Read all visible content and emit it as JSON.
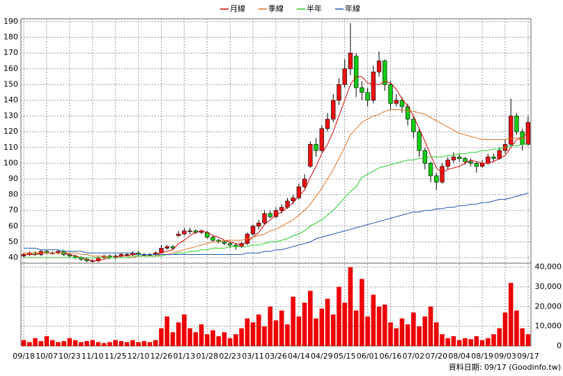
{
  "chart_data": {
    "type": "candlestick",
    "series": [
      {
        "name": "月線",
        "color": "#dd0000",
        "values": [
          42,
          42,
          42,
          43,
          43,
          43,
          43,
          43,
          42,
          41,
          40,
          39,
          38,
          38,
          39,
          40,
          40,
          41,
          41,
          42,
          42,
          42,
          42,
          42,
          43,
          44,
          45,
          49,
          51,
          54,
          56,
          57,
          56,
          54,
          53,
          51,
          50,
          49,
          48,
          50,
          53,
          56,
          61,
          64,
          67,
          69,
          72,
          75,
          79,
          83,
          91,
          98,
          106,
          112,
          120,
          130,
          140,
          150,
          155,
          155,
          151,
          150,
          150,
          152,
          151,
          147,
          141,
          136,
          130,
          122,
          114,
          105,
          97,
          94,
          96,
          97,
          98,
          100,
          102,
          101,
          100,
          100,
          101,
          103,
          105,
          110,
          115,
          116,
          120
        ]
      },
      {
        "name": "季線",
        "color": "#e07020",
        "values": [
          43,
          43,
          43,
          43,
          43,
          43,
          43,
          43,
          43,
          43,
          42,
          42,
          41,
          41,
          41,
          40,
          40,
          40,
          40,
          40,
          41,
          41,
          41,
          41,
          42,
          42,
          43,
          44,
          45,
          46,
          47,
          48,
          49,
          50,
          50,
          51,
          51,
          51,
          51,
          52,
          53,
          54,
          55,
          57,
          58,
          60,
          62,
          64,
          67,
          70,
          74,
          79,
          84,
          90,
          96,
          103,
          110,
          118,
          122,
          126,
          128,
          130,
          131,
          133,
          134,
          134,
          134,
          133,
          133,
          132,
          131,
          129,
          127,
          125,
          123,
          121,
          119,
          118,
          117,
          116,
          115,
          115,
          115,
          115,
          115,
          116,
          116,
          116,
          116
        ]
      },
      {
        "name": "半年",
        "color": "#22cc22",
        "values": [
          40,
          40,
          40,
          40,
          40,
          40,
          40,
          40,
          40,
          40,
          40,
          40,
          40,
          40,
          40,
          40,
          40,
          40,
          40,
          41,
          41,
          41,
          41,
          41,
          41,
          42,
          42,
          43,
          43,
          44,
          44,
          45,
          45,
          46,
          46,
          46,
          47,
          47,
          47,
          47,
          48,
          48,
          49,
          50,
          50,
          51,
          52,
          54,
          55,
          57,
          60,
          62,
          64,
          67,
          70,
          74,
          78,
          82,
          85,
          91,
          93,
          95,
          97,
          98,
          99,
          100,
          101,
          102,
          102,
          103,
          103,
          104,
          104,
          104,
          105,
          105,
          106,
          106,
          107,
          107,
          108,
          108,
          109,
          109,
          110,
          111,
          111,
          112,
          112
        ]
      },
      {
        "name": "年線",
        "color": "#1a56b0",
        "values": [
          46,
          46,
          46,
          45,
          45,
          45,
          45,
          44,
          44,
          44,
          44,
          43,
          43,
          43,
          43,
          43,
          43,
          43,
          43,
          43,
          42,
          42,
          42,
          42,
          42,
          42,
          42,
          42,
          42,
          42,
          42,
          42,
          42,
          42,
          42,
          42,
          42,
          42,
          42,
          43,
          43,
          43,
          44,
          44,
          45,
          45,
          46,
          47,
          48,
          49,
          50,
          52,
          53,
          54,
          55,
          56,
          57,
          58,
          59,
          60,
          61,
          62,
          63,
          64,
          65,
          66,
          67,
          68,
          69,
          69,
          70,
          70,
          71,
          71,
          72,
          72,
          73,
          73,
          74,
          74,
          75,
          75,
          76,
          77,
          77,
          78,
          79,
          80,
          81
        ]
      }
    ],
    "ohlc": [
      [
        41,
        43,
        40,
        42
      ],
      [
        42,
        44,
        41,
        43
      ],
      [
        43,
        44,
        41,
        42
      ],
      [
        42,
        45,
        41,
        44
      ],
      [
        44,
        45,
        42,
        43
      ],
      [
        43,
        44,
        42,
        43
      ],
      [
        43,
        45,
        42,
        44
      ],
      [
        44,
        45,
        41,
        42
      ],
      [
        42,
        43,
        40,
        41
      ],
      [
        41,
        42,
        39,
        40
      ],
      [
        40,
        41,
        38,
        39
      ],
      [
        39,
        40,
        37,
        38
      ],
      [
        38,
        39,
        37,
        38
      ],
      [
        38,
        41,
        37,
        40
      ],
      [
        40,
        42,
        39,
        41
      ],
      [
        41,
        42,
        39,
        40
      ],
      [
        40,
        42,
        39,
        41
      ],
      [
        41,
        43,
        40,
        42
      ],
      [
        42,
        43,
        41,
        42
      ],
      [
        42,
        44,
        41,
        43
      ],
      [
        43,
        44,
        41,
        42
      ],
      [
        42,
        43,
        41,
        42
      ],
      [
        42,
        43,
        41,
        42
      ],
      [
        42,
        44,
        41,
        43
      ],
      [
        43,
        48,
        43,
        46
      ],
      [
        46,
        48,
        45,
        47
      ],
      [
        47,
        48,
        45,
        46
      ],
      [
        54,
        57,
        53,
        55
      ],
      [
        55,
        59,
        54,
        57
      ],
      [
        57,
        59,
        55,
        57
      ],
      [
        57,
        58,
        55,
        56
      ],
      [
        56,
        58,
        55,
        57
      ],
      [
        56,
        57,
        52,
        53
      ],
      [
        53,
        54,
        50,
        51
      ],
      [
        51,
        52,
        49,
        50
      ],
      [
        50,
        51,
        48,
        49
      ],
      [
        49,
        50,
        46,
        48
      ],
      [
        48,
        49,
        45,
        47
      ],
      [
        47,
        50,
        46,
        49
      ],
      [
        49,
        56,
        48,
        55
      ],
      [
        55,
        61,
        54,
        60
      ],
      [
        60,
        64,
        58,
        62
      ],
      [
        62,
        70,
        61,
        68
      ],
      [
        68,
        70,
        65,
        66
      ],
      [
        66,
        72,
        65,
        70
      ],
      [
        70,
        74,
        68,
        72
      ],
      [
        72,
        78,
        71,
        76
      ],
      [
        76,
        80,
        74,
        78
      ],
      [
        78,
        87,
        77,
        85
      ],
      [
        85,
        93,
        84,
        90
      ],
      [
        98,
        114,
        97,
        112
      ],
      [
        112,
        116,
        104,
        108
      ],
      [
        108,
        124,
        107,
        122
      ],
      [
        122,
        132,
        120,
        128
      ],
      [
        128,
        144,
        126,
        140
      ],
      [
        140,
        154,
        137,
        150
      ],
      [
        150,
        166,
        148,
        160
      ],
      [
        160,
        189,
        156,
        170
      ],
      [
        168,
        170,
        142,
        148
      ],
      [
        148,
        152,
        140,
        145
      ],
      [
        145,
        148,
        136,
        140
      ],
      [
        140,
        162,
        138,
        158
      ],
      [
        158,
        171,
        155,
        165
      ],
      [
        165,
        166,
        146,
        150
      ],
      [
        150,
        152,
        134,
        138
      ],
      [
        138,
        144,
        136,
        140
      ],
      [
        140,
        142,
        132,
        136
      ],
      [
        136,
        138,
        124,
        128
      ],
      [
        128,
        130,
        116,
        120
      ],
      [
        120,
        122,
        104,
        108
      ],
      [
        108,
        110,
        96,
        100
      ],
      [
        100,
        101,
        88,
        92
      ],
      [
        92,
        94,
        83,
        88
      ],
      [
        88,
        100,
        87,
        98
      ],
      [
        98,
        104,
        96,
        102
      ],
      [
        102,
        107,
        100,
        104
      ],
      [
        104,
        106,
        101,
        103
      ],
      [
        103,
        104,
        99,
        101
      ],
      [
        101,
        103,
        98,
        100
      ],
      [
        100,
        101,
        94,
        98
      ],
      [
        98,
        102,
        97,
        100
      ],
      [
        100,
        106,
        99,
        104
      ],
      [
        104,
        106,
        101,
        103
      ],
      [
        103,
        110,
        102,
        108
      ],
      [
        108,
        115,
        106,
        112
      ],
      [
        112,
        141,
        111,
        130
      ],
      [
        130,
        132,
        118,
        120
      ],
      [
        120,
        122,
        108,
        112
      ],
      [
        112,
        130,
        111,
        126
      ]
    ],
    "up_color": "#ee1111",
    "down_color": "#11cc11",
    "volume": {
      "color": "#ee0000",
      "values": [
        3000,
        2000,
        4000,
        2500,
        5000,
        3000,
        2000,
        2500,
        4000,
        3000,
        2000,
        2500,
        3000,
        2000,
        1500,
        2000,
        3000,
        2500,
        2000,
        3000,
        2000,
        2500,
        2000,
        3000,
        9000,
        15000,
        7000,
        12000,
        16000,
        9000,
        7000,
        11000,
        6000,
        8000,
        5000,
        7000,
        4000,
        6000,
        9000,
        14000,
        12000,
        16000,
        10000,
        20000,
        13000,
        18000,
        11000,
        25000,
        15000,
        22000,
        28000,
        14000,
        19000,
        24000,
        16000,
        30000,
        22000,
        40000,
        18000,
        34000,
        15000,
        26000,
        20000,
        21000,
        12000,
        9000,
        14000,
        11000,
        17000,
        10000,
        15000,
        20000,
        12000,
        6000,
        4000,
        5000,
        3000,
        4000,
        3500,
        5000,
        3000,
        4000,
        6000,
        9000,
        17000,
        32000,
        18000,
        9000,
        6000
      ]
    },
    "categories": [
      "09/18",
      null,
      null,
      null,
      "10/07",
      null,
      null,
      null,
      "10/23",
      null,
      null,
      null,
      "11/10",
      null,
      null,
      null,
      "11/25",
      null,
      null,
      null,
      "12/10",
      null,
      null,
      null,
      "12/26",
      null,
      null,
      null,
      "01/13",
      null,
      null,
      null,
      "01/28",
      null,
      null,
      null,
      "02/23",
      null,
      null,
      null,
      "03/11",
      null,
      null,
      null,
      "03/26",
      null,
      null,
      null,
      "04/14",
      null,
      null,
      null,
      "04/29",
      null,
      null,
      null,
      "05/15",
      null,
      null,
      null,
      "06/01",
      null,
      null,
      null,
      "06/16",
      null,
      null,
      null,
      "07/02",
      null,
      null,
      null,
      "07/20",
      null,
      null,
      null,
      "08/04",
      null,
      null,
      null,
      "08/19",
      null,
      null,
      null,
      "09/03",
      null,
      null,
      null,
      "09/17"
    ],
    "ylim": [
      40,
      190
    ],
    "yticks": [
      40,
      50,
      60,
      70,
      80,
      90,
      100,
      110,
      120,
      130,
      140,
      150,
      160,
      170,
      180,
      190
    ],
    "y2lim": [
      0,
      42000
    ],
    "y2ticks": [
      0,
      {
        "value": 10000,
        "label": "10,000"
      },
      {
        "value": 20000,
        "label": "20,000"
      },
      {
        "value": 30000,
        "label": "30,000"
      },
      {
        "value": 40000,
        "label": "40,000"
      }
    ],
    "grid": true,
    "footnote": "資料日期: 09/17 (Goodinfo.tw)"
  }
}
